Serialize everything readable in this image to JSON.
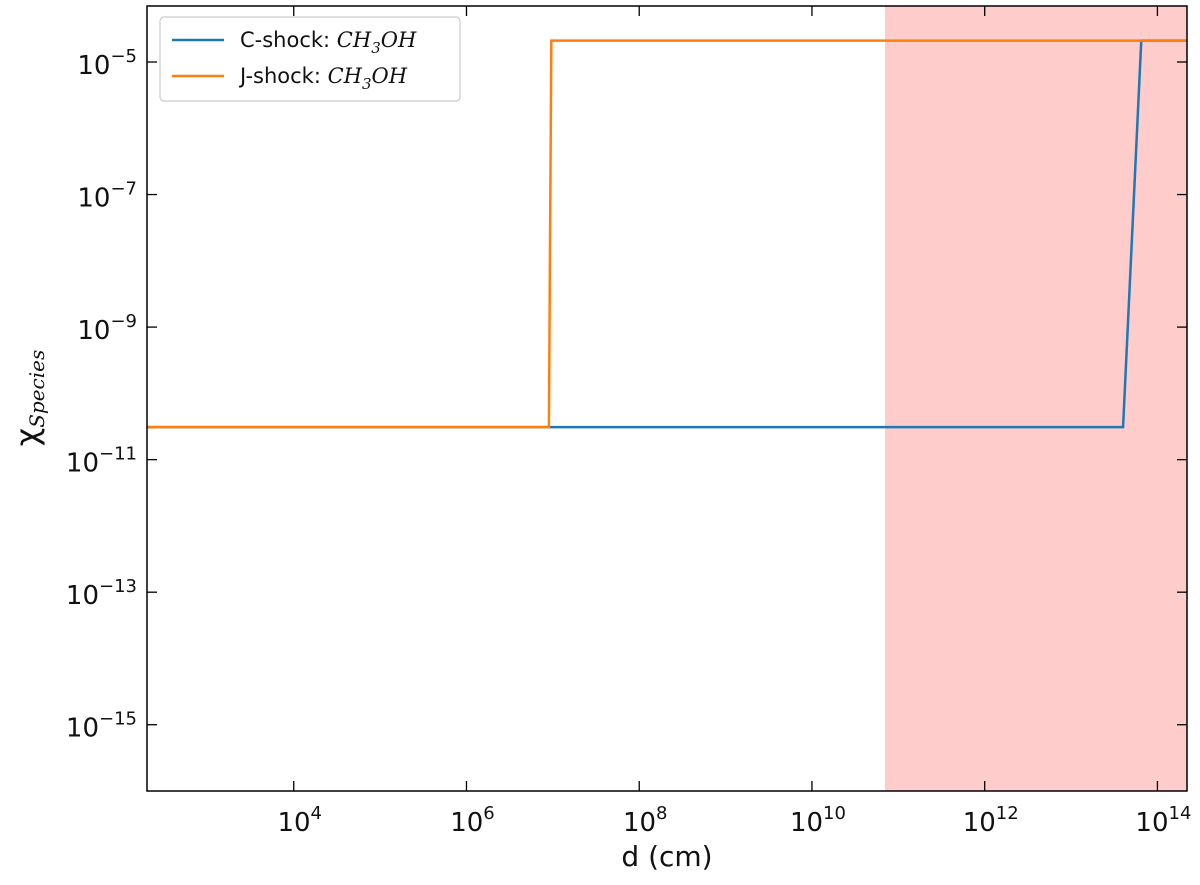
{
  "chart_data": {
    "type": "line",
    "xscale": "log",
    "yscale": "log",
    "xlabel": "d (cm)",
    "ylabel": "χSpecies",
    "ylabel_main": "χ",
    "ylabel_sub": "Species",
    "xlim": [
      200,
      220000000000000.0
    ],
    "ylim": [
      1e-16,
      7e-05
    ],
    "x_ticks": [
      {
        "value": 10000.0,
        "base": "10",
        "exp": "4"
      },
      {
        "value": 1000000.0,
        "base": "10",
        "exp": "6"
      },
      {
        "value": 100000000.0,
        "base": "10",
        "exp": "8"
      },
      {
        "value": 10000000000.0,
        "base": "10",
        "exp": "10"
      },
      {
        "value": 1000000000000.0,
        "base": "10",
        "exp": "12"
      },
      {
        "value": 100000000000000.0,
        "base": "10",
        "exp": "14"
      }
    ],
    "y_ticks": [
      {
        "value": 1e-15,
        "base": "10",
        "exp": "−15"
      },
      {
        "value": 1e-13,
        "base": "10",
        "exp": "−13"
      },
      {
        "value": 1e-11,
        "base": "10",
        "exp": "−11"
      },
      {
        "value": 1e-09,
        "base": "10",
        "exp": "−9"
      },
      {
        "value": 1e-07,
        "base": "10",
        "exp": "−7"
      },
      {
        "value": 1e-05,
        "base": "10",
        "exp": "−5"
      }
    ],
    "shaded_region": {
      "x": [
        70000000000.0,
        220000000000000.0
      ],
      "color": "#ffcccc"
    },
    "legend_position": "upper left",
    "series": [
      {
        "name": "C-shock: CH3OH",
        "name_prefix": "C-shock: ",
        "species": {
          "a": "CH",
          "sub": "3",
          "b": "OH"
        },
        "color": "#1f77b4",
        "x": [
          200,
          10000000.0,
          40000000000000.0,
          65000000000000.0,
          220000000000000.0
        ],
        "y": [
          3.1e-11,
          3.1e-11,
          3.1e-11,
          2.1e-05,
          2.1e-05
        ]
      },
      {
        "name": "J-shock: CH3OH",
        "name_prefix": "J-shock: ",
        "species": {
          "a": "CH",
          "sub": "3",
          "b": "OH"
        },
        "color": "#ff7f0e",
        "x": [
          200,
          9000000.0,
          9600000.0,
          220000000000000.0
        ],
        "y": [
          3.1e-11,
          3.1e-11,
          2.1e-05,
          2.1e-05
        ]
      }
    ]
  }
}
